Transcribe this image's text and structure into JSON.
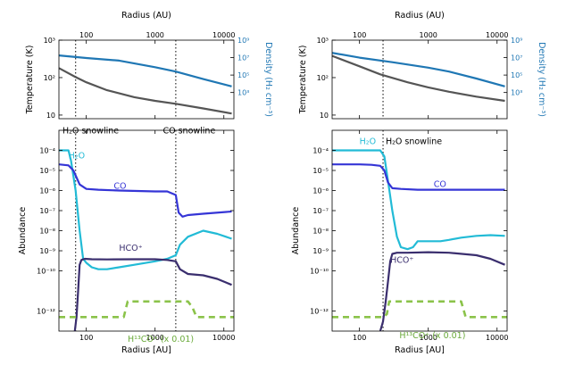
{
  "chart_data": [
    {
      "panel": "left",
      "top": {
        "type": "line",
        "xlabel": "Radius (AU)",
        "ylabel": "Temperature (K)",
        "ylabel_right": "Density (H₂ cm⁻³)",
        "xscale": "log",
        "yscale": "log",
        "xlim": [
          40,
          14000
        ],
        "ylim": [
          8,
          1000
        ],
        "ylim_right": [
          1,
          1000000000
        ],
        "xticks": [
          "100",
          "1000",
          "10000"
        ],
        "yticks": [
          "10",
          "10²",
          "10³"
        ],
        "yticks_right": [
          "10³",
          "10⁵",
          "10⁷",
          "10⁹"
        ],
        "series": [
          {
            "axis": "left",
            "color": "#555555",
            "x": [
              40,
              70,
              100,
              200,
              500,
              1000,
              2000,
              5000,
              13000
            ],
            "y": [
              180,
              103,
              75,
              46,
              30,
              24,
              20,
              15,
              11
            ]
          },
          {
            "axis": "right",
            "color": "#1f77b4",
            "x": [
              40,
              100,
              300,
              1000,
              2000,
              5000,
              13000
            ],
            "y": [
              18000000,
              9000000,
              4500000,
              800000,
              250000,
              35000,
              5000
            ]
          }
        ],
        "vlines": [
          70,
          2000
        ]
      },
      "bottom": {
        "type": "line",
        "xlabel": "Radius [AU]",
        "ylabel": "Abundance",
        "xscale": "log",
        "yscale": "log",
        "xlim": [
          40,
          14000
        ],
        "ylim": [
          1e-13,
          0.001
        ],
        "xticks": [
          "100",
          "1000",
          "10000"
        ],
        "yticks": [
          "10⁻¹²",
          "10⁻¹⁰",
          "10⁻⁹",
          "10⁻⁸",
          "10⁻⁷",
          "10⁻⁶",
          "10⁻⁵",
          "10⁻⁴"
        ],
        "vlines": [
          70,
          2000
        ],
        "annotations": [
          {
            "text": "H₂O snowline",
            "x": 45,
            "y": 0.0007,
            "color": "#000000"
          },
          {
            "text": "CO snowline",
            "x": 1300,
            "y": 0.0007,
            "color": "#000000"
          },
          {
            "text": "H₂O",
            "x": 55,
            "y": 4e-05,
            "color": "#22bbd6"
          },
          {
            "text": "CO",
            "x": 250,
            "y": 1.2e-06,
            "color": "#3535d6"
          },
          {
            "text": "HCO⁺",
            "x": 300,
            "y": 1e-09,
            "color": "#3a2e6e"
          },
          {
            "text": "H¹³CO⁺ (x 0.01)",
            "x": 400,
            "y": 3e-14,
            "color": "#6aaa3a"
          }
        ],
        "series": [
          {
            "name": "H₂O",
            "color": "#22bbd6",
            "x": [
              40,
              50,
              55,
              60,
              70,
              80,
              90,
              100,
              120,
              150,
              200,
              300,
              500,
              1000,
              1500,
              2000,
              2300,
              3000,
              5000,
              8000,
              13000
            ],
            "y": [
              0.0001,
              0.0001,
              0.0001,
              3e-05,
              1e-06,
              1e-08,
              4e-10,
              2.5e-10,
              1.5e-10,
              1.2e-10,
              1.2e-10,
              1.5e-10,
              2e-10,
              3e-10,
              4e-10,
              6e-10,
              2e-09,
              5e-09,
              1e-08,
              7e-09,
              4e-09
            ]
          },
          {
            "name": "CO",
            "color": "#3535d6",
            "x": [
              40,
              55,
              65,
              80,
              100,
              150,
              300,
              1000,
              1500,
              2000,
              2200,
              2500,
              3000,
              5000,
              13000
            ],
            "y": [
              2e-05,
              1.8e-05,
              1e-05,
              2e-06,
              1.2e-06,
              1.1e-06,
              1e-06,
              9e-07,
              9e-07,
              6e-07,
              8e-08,
              5e-08,
              6e-08,
              7e-08,
              9e-08
            ]
          },
          {
            "name": "HCO⁺",
            "color": "#3a2e6e",
            "x": [
              68,
              72,
              76,
              80,
              85,
              95,
              120,
              200,
              500,
              1000,
              1500,
              2000,
              2300,
              3000,
              5000,
              8000,
              13000
            ],
            "y": [
              1e-13,
              5e-13,
              1e-11,
              2e-10,
              3.5e-10,
              4e-10,
              3.8e-10,
              3.7e-10,
              3.8e-10,
              3.8e-10,
              3.5e-10,
              3e-10,
              1.2e-10,
              7e-11,
              6e-11,
              4e-11,
              2e-11
            ]
          },
          {
            "name": "H¹³CO⁺ (x 0.01)",
            "color": "#8bc34a",
            "dashed": true,
            "x": [
              40,
              350,
              400,
              2000,
              3000,
              3500,
              4000,
              14000
            ],
            "y": [
              5e-13,
              5e-13,
              3e-12,
              3e-12,
              3e-12,
              1.5e-12,
              5e-13,
              5e-13
            ]
          }
        ]
      }
    },
    {
      "panel": "right",
      "top": {
        "type": "line",
        "xlabel": "Radius (AU)",
        "ylabel": "Temperature (K)",
        "ylabel_right": "Density (H₂ cm⁻³)",
        "xscale": "log",
        "yscale": "log",
        "xlim": [
          40,
          14000
        ],
        "ylim": [
          8,
          1000
        ],
        "ylim_right": [
          1,
          1000000000
        ],
        "xticks": [
          "100",
          "1000",
          "10000"
        ],
        "yticks": [
          "10",
          "10²",
          "10³"
        ],
        "yticks_right": [
          "10³",
          "10⁵",
          "10⁷",
          "10⁹"
        ],
        "series": [
          {
            "axis": "left",
            "color": "#555555",
            "x": [
              40,
              100,
              200,
              500,
              1000,
              2000,
              5000,
              13000
            ],
            "y": [
              380,
              200,
              122,
              75,
              55,
              42,
              31,
              24
            ]
          },
          {
            "axis": "right",
            "color": "#1f77b4",
            "x": [
              40,
              100,
              300,
              1000,
              2000,
              5000,
              13000
            ],
            "y": [
              35000000,
              10000000,
              3000000,
              700000,
              250000,
              40000,
              5000
            ]
          }
        ],
        "vlines": [
          220
        ]
      },
      "bottom": {
        "type": "line",
        "xlabel": "Radius [AU]",
        "ylabel": "Abundance",
        "xscale": "log",
        "yscale": "log",
        "xlim": [
          40,
          14000
        ],
        "ylim": [
          1e-13,
          0.001
        ],
        "xticks": [
          "100",
          "1000",
          "10000"
        ],
        "yticks": [
          "10⁻¹²",
          "10⁻¹⁰",
          "10⁻⁹",
          "10⁻⁸",
          "10⁻⁷",
          "10⁻⁶",
          "10⁻⁵",
          "10⁻⁴"
        ],
        "vlines": [
          220
        ],
        "annotations": [
          {
            "text": "H₂O",
            "x": 100,
            "y": 0.0002,
            "color": "#22bbd6"
          },
          {
            "text": "H₂O snowline",
            "x": 240,
            "y": 0.0002,
            "color": "#000000"
          },
          {
            "text": "CO",
            "x": 1200,
            "y": 1.5e-06,
            "color": "#3535d6"
          },
          {
            "text": "HCO⁺",
            "x": 280,
            "y": 2.5e-10,
            "color": "#3a2e6e"
          },
          {
            "text": "H¹³CO⁺ (x 0.01)",
            "x": 380,
            "y": 4.5e-14,
            "color": "#6aaa3a"
          }
        ],
        "series": [
          {
            "name": "H₂O",
            "color": "#22bbd6",
            "x": [
              40,
              100,
              200,
              230,
              260,
              300,
              350,
              400,
              500,
              600,
              700,
              1000,
              1500,
              2000,
              3000,
              5000,
              8000,
              13000
            ],
            "y": [
              0.0001,
              0.0001,
              0.0001,
              5e-05,
              3e-06,
              1e-07,
              5e-09,
              1.5e-09,
              1.2e-09,
              1.5e-09,
              3e-09,
              3e-09,
              3e-09,
              3.5e-09,
              4.5e-09,
              5.5e-09,
              6e-09,
              5.5e-09
            ]
          },
          {
            "name": "CO",
            "color": "#3535d6",
            "x": [
              40,
              100,
              150,
              200,
              230,
              260,
              300,
              400,
              700,
              1000,
              2000,
              5000,
              13000
            ],
            "y": [
              2e-05,
              2e-05,
              1.9e-05,
              1.7e-05,
              1e-05,
              2.5e-06,
              1.3e-06,
              1.2e-06,
              1.1e-06,
              1.1e-06,
              1.1e-06,
              1.1e-06,
              1.1e-06
            ]
          },
          {
            "name": "HCO⁺",
            "color": "#3a2e6e",
            "x": [
              200,
              220,
              240,
              260,
              280,
              300,
              350,
              500,
              1000,
              2000,
              5000,
              8000,
              13000
            ],
            "y": [
              1e-13,
              3e-13,
              3e-12,
              3e-11,
              3e-10,
              7e-10,
              8e-10,
              8e-10,
              8.5e-10,
              8e-10,
              6e-10,
              4e-10,
              2e-10
            ]
          },
          {
            "name": "H¹³CO⁺ (x 0.01)",
            "color": "#8bc34a",
            "dashed": true,
            "x": [
              40,
              220,
              250,
              270,
              300,
              600,
              2000,
              2500,
              3000,
              3500,
              14000
            ],
            "y": [
              5e-13,
              5e-13,
              7e-13,
              3e-12,
              3e-12,
              3e-12,
              3e-12,
              3e-12,
              3e-12,
              5e-13,
              5e-13
            ]
          }
        ]
      }
    }
  ]
}
